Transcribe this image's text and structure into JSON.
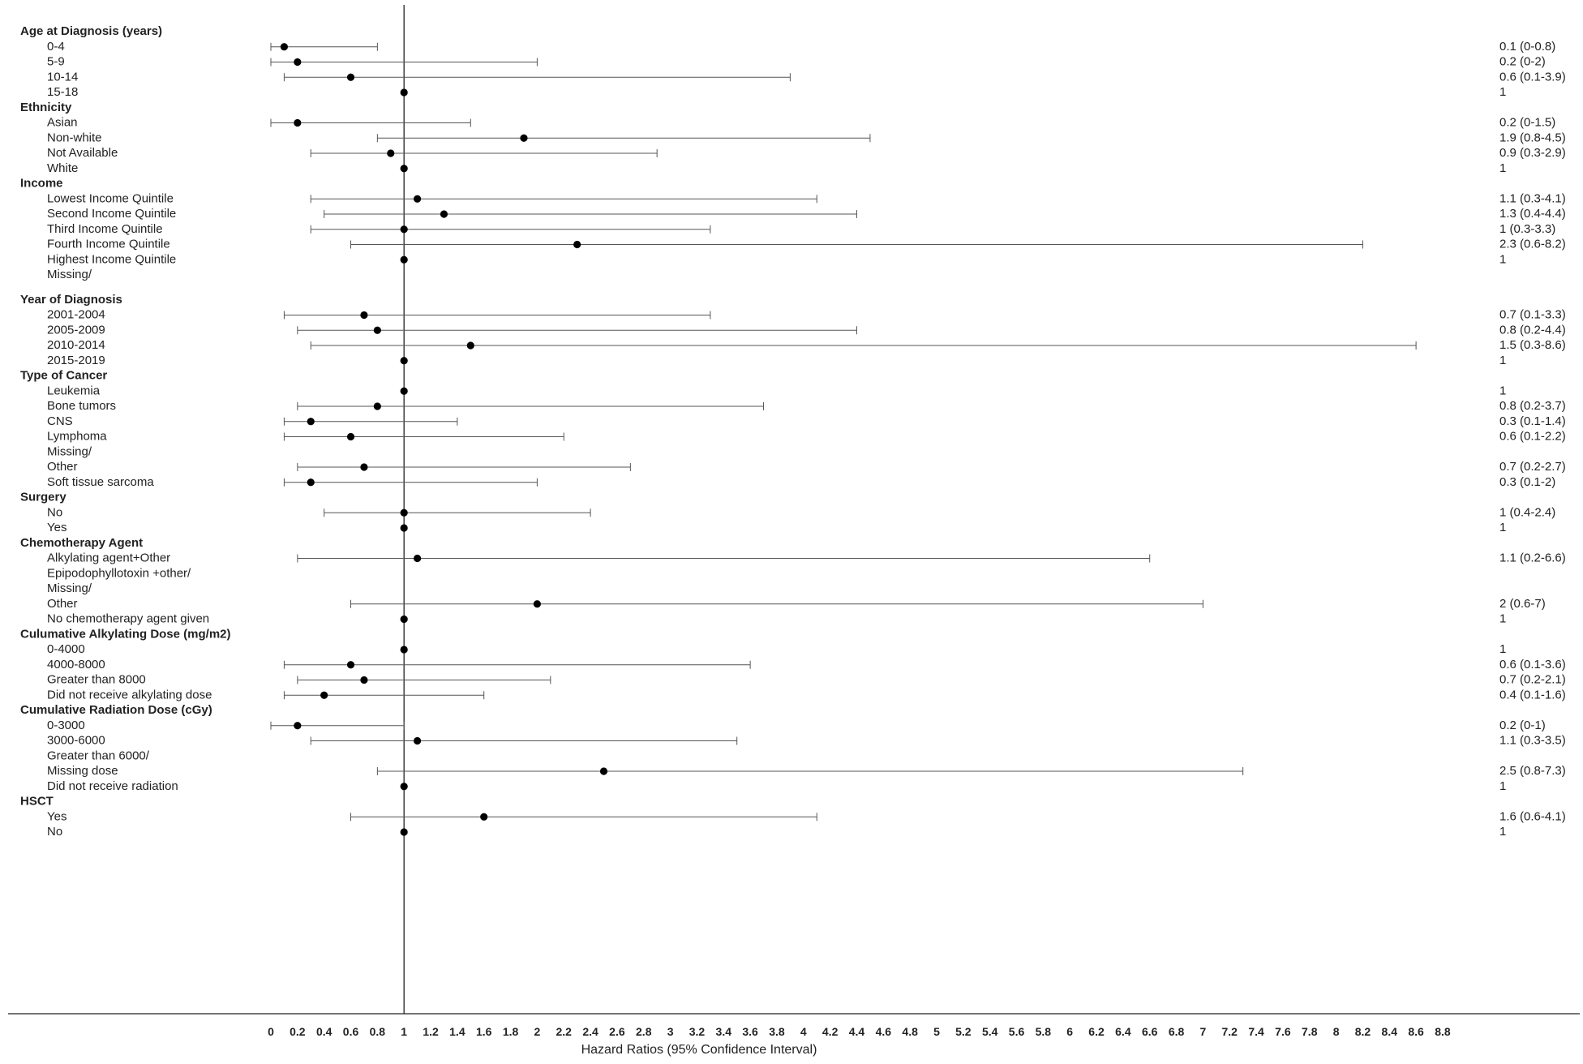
{
  "chart_data": {
    "type": "forest",
    "xlabel": "Hazard Ratios (95% Confidence Interval)",
    "xlim": [
      0,
      8.8
    ],
    "x_ticks": [
      "0",
      "0.2",
      "0.4",
      "0.6",
      "0.8",
      "1",
      "1.2",
      "1.4",
      "1.6",
      "1.8",
      "2",
      "2.2",
      "2.4",
      "2.6",
      "2.8",
      "3",
      "3.2",
      "3.4",
      "3.6",
      "3.8",
      "4",
      "4.2",
      "4.4",
      "4.6",
      "4.8",
      "5",
      "5.2",
      "5.4",
      "5.6",
      "5.8",
      "6",
      "6.2",
      "6.4",
      "6.6",
      "6.8",
      "7",
      "7.2",
      "7.4",
      "7.6",
      "7.8",
      "8",
      "8.2",
      "8.4",
      "8.6",
      "8.8"
    ],
    "reference_line": 1,
    "rows": [
      {
        "type": "header",
        "label": "Age at Diagnosis (years)"
      },
      {
        "type": "item",
        "label": "0-4",
        "hr": 0.1,
        "lo": 0,
        "hi": 0.8,
        "text": "0.1 (0-0.8)"
      },
      {
        "type": "item",
        "label": "5-9",
        "hr": 0.2,
        "lo": 0,
        "hi": 2,
        "text": "0.2 (0-2)"
      },
      {
        "type": "item",
        "label": "10-14",
        "hr": 0.6,
        "lo": 0.1,
        "hi": 3.9,
        "text": "0.6 (0.1-3.9)"
      },
      {
        "type": "item",
        "label": "15-18",
        "hr": 1,
        "text": "1"
      },
      {
        "type": "header",
        "label": "Ethnicity"
      },
      {
        "type": "item",
        "label": "Asian",
        "hr": 0.2,
        "lo": 0,
        "hi": 1.5,
        "text": "0.2 (0-1.5)"
      },
      {
        "type": "item",
        "label": "Non-white",
        "hr": 1.9,
        "lo": 0.8,
        "hi": 4.5,
        "text": "1.9 (0.8-4.5)"
      },
      {
        "type": "item",
        "label": "Not Available",
        "hr": 0.9,
        "lo": 0.3,
        "hi": 2.9,
        "text": "0.9 (0.3-2.9)"
      },
      {
        "type": "item",
        "label": "White",
        "hr": 1,
        "text": "1"
      },
      {
        "type": "header",
        "label": "Income"
      },
      {
        "type": "item",
        "label": "Lowest Income Quintile",
        "hr": 1.1,
        "lo": 0.3,
        "hi": 4.1,
        "text": "1.1 (0.3-4.1)"
      },
      {
        "type": "item",
        "label": "Second Income Quintile",
        "hr": 1.3,
        "lo": 0.4,
        "hi": 4.4,
        "text": "1.3 (0.4-4.4)"
      },
      {
        "type": "item",
        "label": "Third Income Quintile",
        "hr": 1,
        "lo": 0.3,
        "hi": 3.3,
        "text": "1 (0.3-3.3)"
      },
      {
        "type": "item",
        "label": "Fourth Income Quintile",
        "hr": 2.3,
        "lo": 0.6,
        "hi": 8.2,
        "text": "2.3 (0.6-8.2)"
      },
      {
        "type": "item",
        "label": "Highest Income Quintile",
        "hr": 1,
        "text": "1"
      },
      {
        "type": "item",
        "label": "Missing/",
        "text": ""
      },
      {
        "type": "header",
        "label": "Year of Diagnosis"
      },
      {
        "type": "item",
        "label": "2001-2004",
        "hr": 0.7,
        "lo": 0.1,
        "hi": 3.3,
        "text": "0.7 (0.1-3.3)"
      },
      {
        "type": "item",
        "label": "2005-2009",
        "hr": 0.8,
        "lo": 0.2,
        "hi": 4.4,
        "text": "0.8 (0.2-4.4)"
      },
      {
        "type": "item",
        "label": "2010-2014",
        "hr": 1.5,
        "lo": 0.3,
        "hi": 8.6,
        "text": "1.5 (0.3-8.6)"
      },
      {
        "type": "item",
        "label": "2015-2019",
        "hr": 1,
        "text": "1"
      },
      {
        "type": "header",
        "label": "Type of Cancer"
      },
      {
        "type": "item",
        "label": "Leukemia",
        "hr": 1,
        "text": "1"
      },
      {
        "type": "item",
        "label": "Bone tumors",
        "hr": 0.8,
        "lo": 0.2,
        "hi": 3.7,
        "text": "0.8 (0.2-3.7)"
      },
      {
        "type": "item",
        "label": "CNS",
        "hr": 0.3,
        "lo": 0.1,
        "hi": 1.4,
        "text": "0.3 (0.1-1.4)"
      },
      {
        "type": "item",
        "label": "Lymphoma",
        "hr": 0.6,
        "lo": 0.1,
        "hi": 2.2,
        "text": "0.6 (0.1-2.2)"
      },
      {
        "type": "item",
        "label": "Missing/",
        "text": ""
      },
      {
        "type": "item",
        "label": "Other",
        "hr": 0.7,
        "lo": 0.2,
        "hi": 2.7,
        "text": "0.7 (0.2-2.7)"
      },
      {
        "type": "item",
        "label": "Soft tissue sarcoma",
        "hr": 0.3,
        "lo": 0.1,
        "hi": 2,
        "text": "0.3 (0.1-2)"
      },
      {
        "type": "header",
        "label": "Surgery"
      },
      {
        "type": "item",
        "label": "No",
        "hr": 1,
        "lo": 0.4,
        "hi": 2.4,
        "text": "1 (0.4-2.4)"
      },
      {
        "type": "item",
        "label": "Yes",
        "hr": 1,
        "text": "1"
      },
      {
        "type": "header",
        "label": "Chemotherapy Agent"
      },
      {
        "type": "item",
        "label": "Alkylating agent+Other",
        "hr": 1.1,
        "lo": 0.2,
        "hi": 6.6,
        "text": "1.1 (0.2-6.6)"
      },
      {
        "type": "item",
        "label": "Epipodophyllotoxin +other/",
        "text": ""
      },
      {
        "type": "item",
        "label": "Missing/",
        "text": ""
      },
      {
        "type": "item",
        "label": "Other",
        "hr": 2,
        "lo": 0.6,
        "hi": 7,
        "text": "2 (0.6-7)"
      },
      {
        "type": "item",
        "label": "No chemotherapy agent given",
        "hr": 1,
        "text": "1"
      },
      {
        "type": "header",
        "label": "Culumative Alkylating Dose  (mg/m2)"
      },
      {
        "type": "item",
        "label": "0-4000",
        "hr": 1,
        "text": "1"
      },
      {
        "type": "item",
        "label": "4000-8000",
        "hr": 0.6,
        "lo": 0.1,
        "hi": 3.6,
        "text": "0.6 (0.1-3.6)"
      },
      {
        "type": "item",
        "label": "Greater than 8000",
        "hr": 0.7,
        "lo": 0.2,
        "hi": 2.1,
        "text": "0.7 (0.2-2.1)"
      },
      {
        "type": "item",
        "label": "Did not receive alkylating dose",
        "hr": 0.4,
        "lo": 0.1,
        "hi": 1.6,
        "text": "0.4 (0.1-1.6)"
      },
      {
        "type": "header",
        "label": "Cumulative Radiation Dose (cGy)"
      },
      {
        "type": "item",
        "label": "0-3000",
        "hr": 0.2,
        "lo": 0,
        "hi": 1,
        "text": "0.2 (0-1)"
      },
      {
        "type": "item",
        "label": "3000-6000",
        "hr": 1.1,
        "lo": 0.3,
        "hi": 3.5,
        "text": "1.1 (0.3-3.5)"
      },
      {
        "type": "item",
        "label": "Greater than 6000/",
        "text": ""
      },
      {
        "type": "item",
        "label": "Missing dose",
        "hr": 2.5,
        "lo": 0.8,
        "hi": 7.3,
        "text": "2.5 (0.8-7.3)"
      },
      {
        "type": "item",
        "label": "Did not receive radiation",
        "hr": 1,
        "text": "1"
      },
      {
        "type": "header",
        "label": "HSCT"
      },
      {
        "type": "item",
        "label": "Yes",
        "hr": 1.6,
        "lo": 0.6,
        "hi": 4.1,
        "text": "1.6 (0.6-4.1)"
      },
      {
        "type": "item",
        "label": "No",
        "hr": 1,
        "text": "1"
      }
    ]
  }
}
